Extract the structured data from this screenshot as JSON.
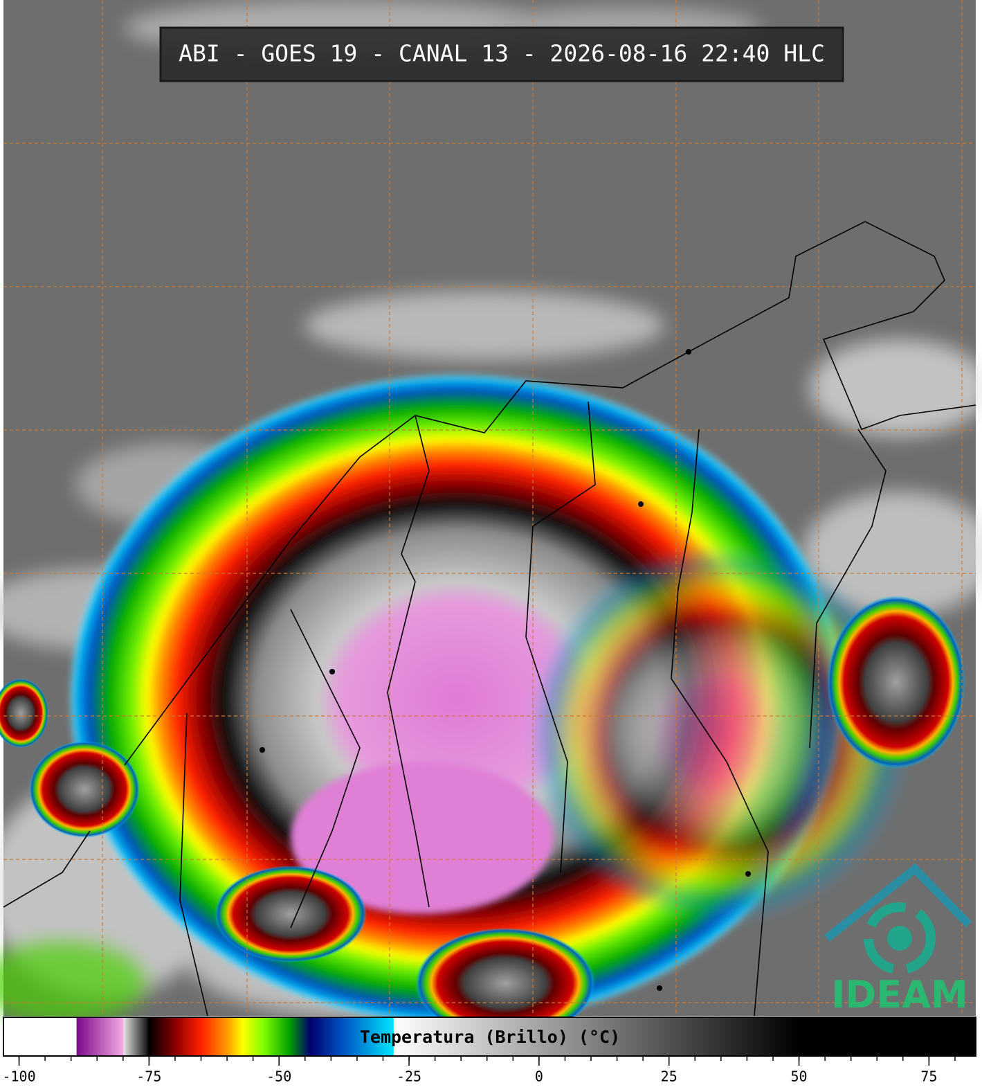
{
  "header": {
    "title": "ABI - GOES 19 - CANAL 13 - 2026-08-16 22:40 HLC"
  },
  "logo": {
    "text": "IDEAM"
  },
  "chart_data": {
    "type": "colorbar",
    "title": "Temperatura (Brillo) (°C)",
    "xlim": [
      -103,
      84
    ],
    "xticks": [
      -100,
      -75,
      -50,
      -25,
      0,
      25,
      50,
      75
    ],
    "minor_xticks": [
      -100,
      -95,
      -90,
      -85,
      -80,
      -75,
      -70,
      -65,
      -60,
      -55,
      -50,
      -45,
      -40,
      -35,
      -30,
      -25,
      -20,
      -15,
      -10,
      -5,
      0,
      5,
      10,
      15,
      20,
      25,
      30,
      35,
      40,
      45,
      50,
      55,
      60,
      65,
      70,
      75,
      80
    ],
    "stops": [
      {
        "value": -103,
        "color": "#ffffff"
      },
      {
        "value": -89,
        "color": "#ffffff"
      },
      {
        "value": -88.9,
        "color": "#7a0a8a"
      },
      {
        "value": -80,
        "color": "#f4a8e4"
      },
      {
        "value": -79.9,
        "color": "#e4e4e4"
      },
      {
        "value": -75.5,
        "color": "#202020"
      },
      {
        "value": -75,
        "color": "#000000"
      },
      {
        "value": -70,
        "color": "#8a0000"
      },
      {
        "value": -65,
        "color": "#ff2000"
      },
      {
        "value": -60,
        "color": "#ff9a00"
      },
      {
        "value": -57,
        "color": "#ffff00"
      },
      {
        "value": -53,
        "color": "#80ff00"
      },
      {
        "value": -48,
        "color": "#00a000"
      },
      {
        "value": -44,
        "color": "#000070"
      },
      {
        "value": -38,
        "color": "#0050c0"
      },
      {
        "value": -28,
        "color": "#00e4ff"
      },
      {
        "value": -27.9,
        "color": "#ffffff"
      },
      {
        "value": 50,
        "color": "#000000"
      },
      {
        "value": 84,
        "color": "#000000"
      }
    ]
  }
}
